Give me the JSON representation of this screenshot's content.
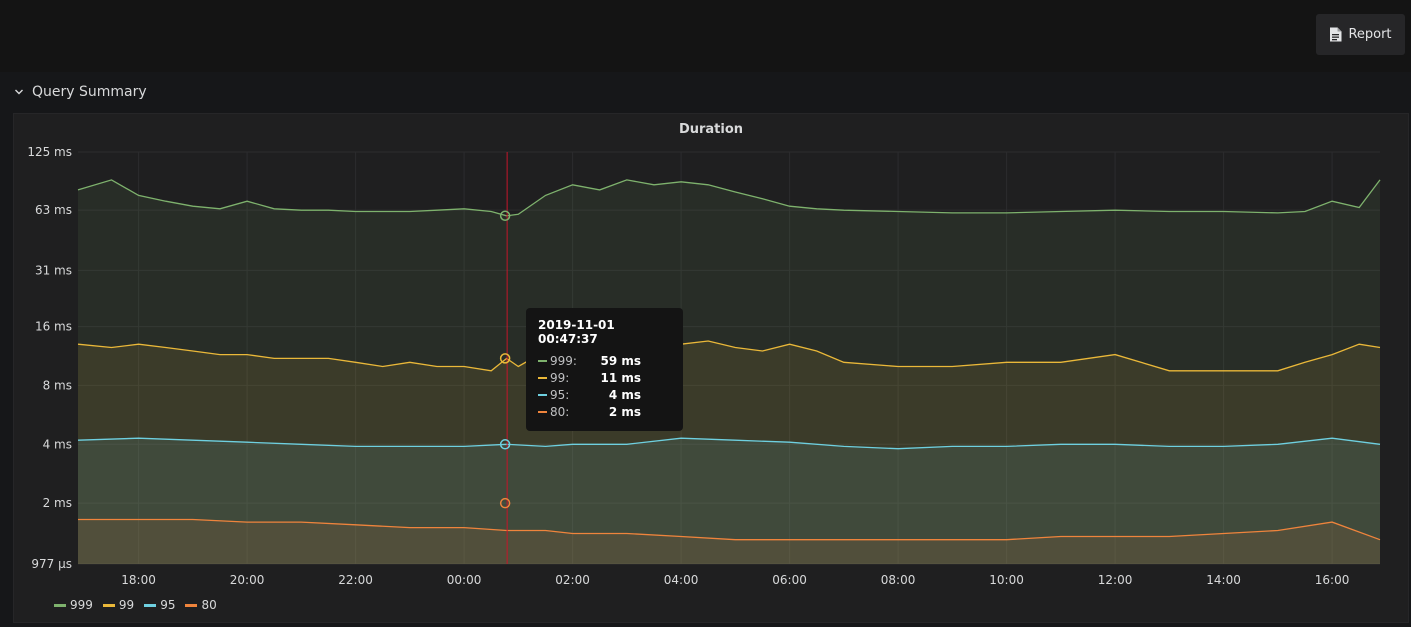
{
  "toolbar": {
    "report_label": "Report"
  },
  "row": {
    "title": "Query Summary"
  },
  "panel": {
    "title": "Duration"
  },
  "tooltip": {
    "time": "2019-11-01 00:47:37",
    "rows": [
      {
        "name": "999:",
        "value": "59 ms",
        "color": "#7eb26d"
      },
      {
        "name": "99:",
        "value": "11 ms",
        "color": "#eab839"
      },
      {
        "name": "95:",
        "value": "4 ms",
        "color": "#6ed0e0"
      },
      {
        "name": "80:",
        "value": "2 ms",
        "color": "#ef843c"
      }
    ]
  },
  "chart_data": {
    "type": "area",
    "title": "Duration",
    "y_scale": "log2",
    "y_unit": "ms",
    "ylim": [
      0.977,
      125
    ],
    "yticks": [
      {
        "value": 125,
        "label": "125 ms"
      },
      {
        "value": 63,
        "label": "63 ms"
      },
      {
        "value": 31,
        "label": "31 ms"
      },
      {
        "value": 16,
        "label": "16 ms"
      },
      {
        "value": 8,
        "label": "8 ms"
      },
      {
        "value": 4,
        "label": "4 ms"
      },
      {
        "value": 2,
        "label": "2 ms"
      },
      {
        "value": 0.977,
        "label": "977 µs"
      }
    ],
    "x_start": "2019-10-31 16:53",
    "x_end": "2019-11-01 16:53",
    "xticks": [
      "18:00",
      "20:00",
      "22:00",
      "00:00",
      "02:00",
      "04:00",
      "06:00",
      "08:00",
      "10:00",
      "12:00",
      "14:00",
      "16:00"
    ],
    "xtick_times": [
      "2019-10-31 18:00",
      "2019-10-31 20:00",
      "2019-10-31 22:00",
      "2019-11-01 00:00",
      "2019-11-01 02:00",
      "2019-11-01 04:00",
      "2019-11-01 06:00",
      "2019-11-01 08:00",
      "2019-11-01 10:00",
      "2019-11-01 12:00",
      "2019-11-01 14:00",
      "2019-11-01 16:00"
    ],
    "crosshair_time": "2019-11-01 00:47:37",
    "grid": true,
    "legend_position": "bottom-left",
    "series": [
      {
        "name": "999",
        "color": "#7eb26d",
        "x": [
          "2019-10-31 16:53",
          "2019-10-31 17:30",
          "2019-10-31 18:00",
          "2019-10-31 18:30",
          "2019-10-31 19:00",
          "2019-10-31 19:30",
          "2019-10-31 20:00",
          "2019-10-31 20:30",
          "2019-10-31 21:00",
          "2019-10-31 21:30",
          "2019-10-31 22:00",
          "2019-10-31 22:30",
          "2019-10-31 23:00",
          "2019-10-31 23:30",
          "2019-11-01 00:00",
          "2019-11-01 00:30",
          "2019-11-01 00:47",
          "2019-11-01 01:00",
          "2019-11-01 01:30",
          "2019-11-01 02:00",
          "2019-11-01 02:30",
          "2019-11-01 03:00",
          "2019-11-01 03:30",
          "2019-11-01 04:00",
          "2019-11-01 04:30",
          "2019-11-01 05:00",
          "2019-11-01 05:30",
          "2019-11-01 06:00",
          "2019-11-01 06:30",
          "2019-11-01 07:00",
          "2019-11-01 08:00",
          "2019-11-01 09:00",
          "2019-11-01 10:00",
          "2019-11-01 11:00",
          "2019-11-01 12:00",
          "2019-11-01 13:00",
          "2019-11-01 14:00",
          "2019-11-01 15:00",
          "2019-11-01 15:30",
          "2019-11-01 16:00",
          "2019-11-01 16:30",
          "2019-11-01 16:53"
        ],
        "values": [
          80,
          90,
          75,
          70,
          66,
          64,
          70,
          64,
          63,
          63,
          62,
          62,
          62,
          63,
          64,
          62,
          59,
          60,
          75,
          85,
          80,
          90,
          85,
          88,
          85,
          78,
          72,
          66,
          64,
          63,
          62,
          61,
          61,
          62,
          63,
          62,
          62,
          61,
          62,
          70,
          65,
          90
        ]
      },
      {
        "name": "99",
        "color": "#eab839",
        "x": [
          "2019-10-31 16:53",
          "2019-10-31 17:30",
          "2019-10-31 18:00",
          "2019-10-31 18:30",
          "2019-10-31 19:00",
          "2019-10-31 19:30",
          "2019-10-31 20:00",
          "2019-10-31 20:30",
          "2019-10-31 21:00",
          "2019-10-31 21:30",
          "2019-10-31 22:00",
          "2019-10-31 22:30",
          "2019-10-31 23:00",
          "2019-10-31 23:30",
          "2019-11-01 00:00",
          "2019-11-01 00:30",
          "2019-11-01 00:47",
          "2019-11-01 01:00",
          "2019-11-01 01:30",
          "2019-11-01 02:00",
          "2019-11-01 02:30",
          "2019-11-01 03:00",
          "2019-11-01 03:30",
          "2019-11-01 04:00",
          "2019-11-01 04:30",
          "2019-11-01 05:00",
          "2019-11-01 05:30",
          "2019-11-01 06:00",
          "2019-11-01 06:30",
          "2019-11-01 07:00",
          "2019-11-01 08:00",
          "2019-11-01 09:00",
          "2019-11-01 10:00",
          "2019-11-01 11:00",
          "2019-11-01 12:00",
          "2019-11-01 13:00",
          "2019-11-01 14:00",
          "2019-11-01 15:00",
          "2019-11-01 15:30",
          "2019-11-01 16:00",
          "2019-11-01 16:30",
          "2019-11-01 16:53"
        ],
        "values": [
          13,
          12.5,
          13,
          12.5,
          12,
          11.5,
          11.5,
          11,
          11,
          11,
          10.5,
          10,
          10.5,
          10,
          10,
          9.5,
          11,
          10,
          12,
          13,
          14,
          15,
          14,
          13,
          13.5,
          12.5,
          12,
          13,
          12,
          10.5,
          10,
          10,
          10.5,
          10.5,
          11.5,
          9.5,
          9.5,
          9.5,
          10.5,
          11.5,
          13,
          12.5
        ]
      },
      {
        "name": "95",
        "color": "#6ed0e0",
        "x": [
          "2019-10-31 16:53",
          "2019-10-31 18:00",
          "2019-10-31 19:00",
          "2019-10-31 20:00",
          "2019-10-31 21:00",
          "2019-10-31 22:00",
          "2019-10-31 23:00",
          "2019-11-01 00:00",
          "2019-11-01 00:47",
          "2019-11-01 01:30",
          "2019-11-01 02:00",
          "2019-11-01 03:00",
          "2019-11-01 04:00",
          "2019-11-01 05:00",
          "2019-11-01 06:00",
          "2019-11-01 07:00",
          "2019-11-01 08:00",
          "2019-11-01 09:00",
          "2019-11-01 10:00",
          "2019-11-01 11:00",
          "2019-11-01 12:00",
          "2019-11-01 13:00",
          "2019-11-01 14:00",
          "2019-11-01 15:00",
          "2019-11-01 16:00",
          "2019-11-01 16:53"
        ],
        "values": [
          4.2,
          4.3,
          4.2,
          4.1,
          4.0,
          3.9,
          3.9,
          3.9,
          4.0,
          3.9,
          4.0,
          4.0,
          4.3,
          4.2,
          4.1,
          3.9,
          3.8,
          3.9,
          3.9,
          4.0,
          4.0,
          3.9,
          3.9,
          4.0,
          4.3,
          4.0
        ]
      },
      {
        "name": "80",
        "color": "#ef843c",
        "x": [
          "2019-10-31 16:53",
          "2019-10-31 18:00",
          "2019-10-31 19:00",
          "2019-10-31 20:00",
          "2019-10-31 21:00",
          "2019-10-31 22:00",
          "2019-10-31 23:00",
          "2019-11-01 00:00",
          "2019-11-01 00:47",
          "2019-11-01 01:30",
          "2019-11-01 02:00",
          "2019-11-01 03:00",
          "2019-11-01 04:00",
          "2019-11-01 05:00",
          "2019-11-01 06:00",
          "2019-11-01 07:00",
          "2019-11-01 08:00",
          "2019-11-01 09:00",
          "2019-11-01 10:00",
          "2019-11-01 11:00",
          "2019-11-01 12:00",
          "2019-11-01 13:00",
          "2019-11-01 14:00",
          "2019-11-01 15:00",
          "2019-11-01 16:00",
          "2019-11-01 16:53"
        ],
        "values": [
          1.65,
          1.65,
          1.65,
          1.6,
          1.6,
          1.55,
          1.5,
          1.5,
          1.45,
          1.45,
          1.4,
          1.4,
          1.35,
          1.3,
          1.3,
          1.3,
          1.3,
          1.3,
          1.3,
          1.35,
          1.35,
          1.35,
          1.4,
          1.45,
          1.6,
          1.3
        ]
      }
    ]
  }
}
